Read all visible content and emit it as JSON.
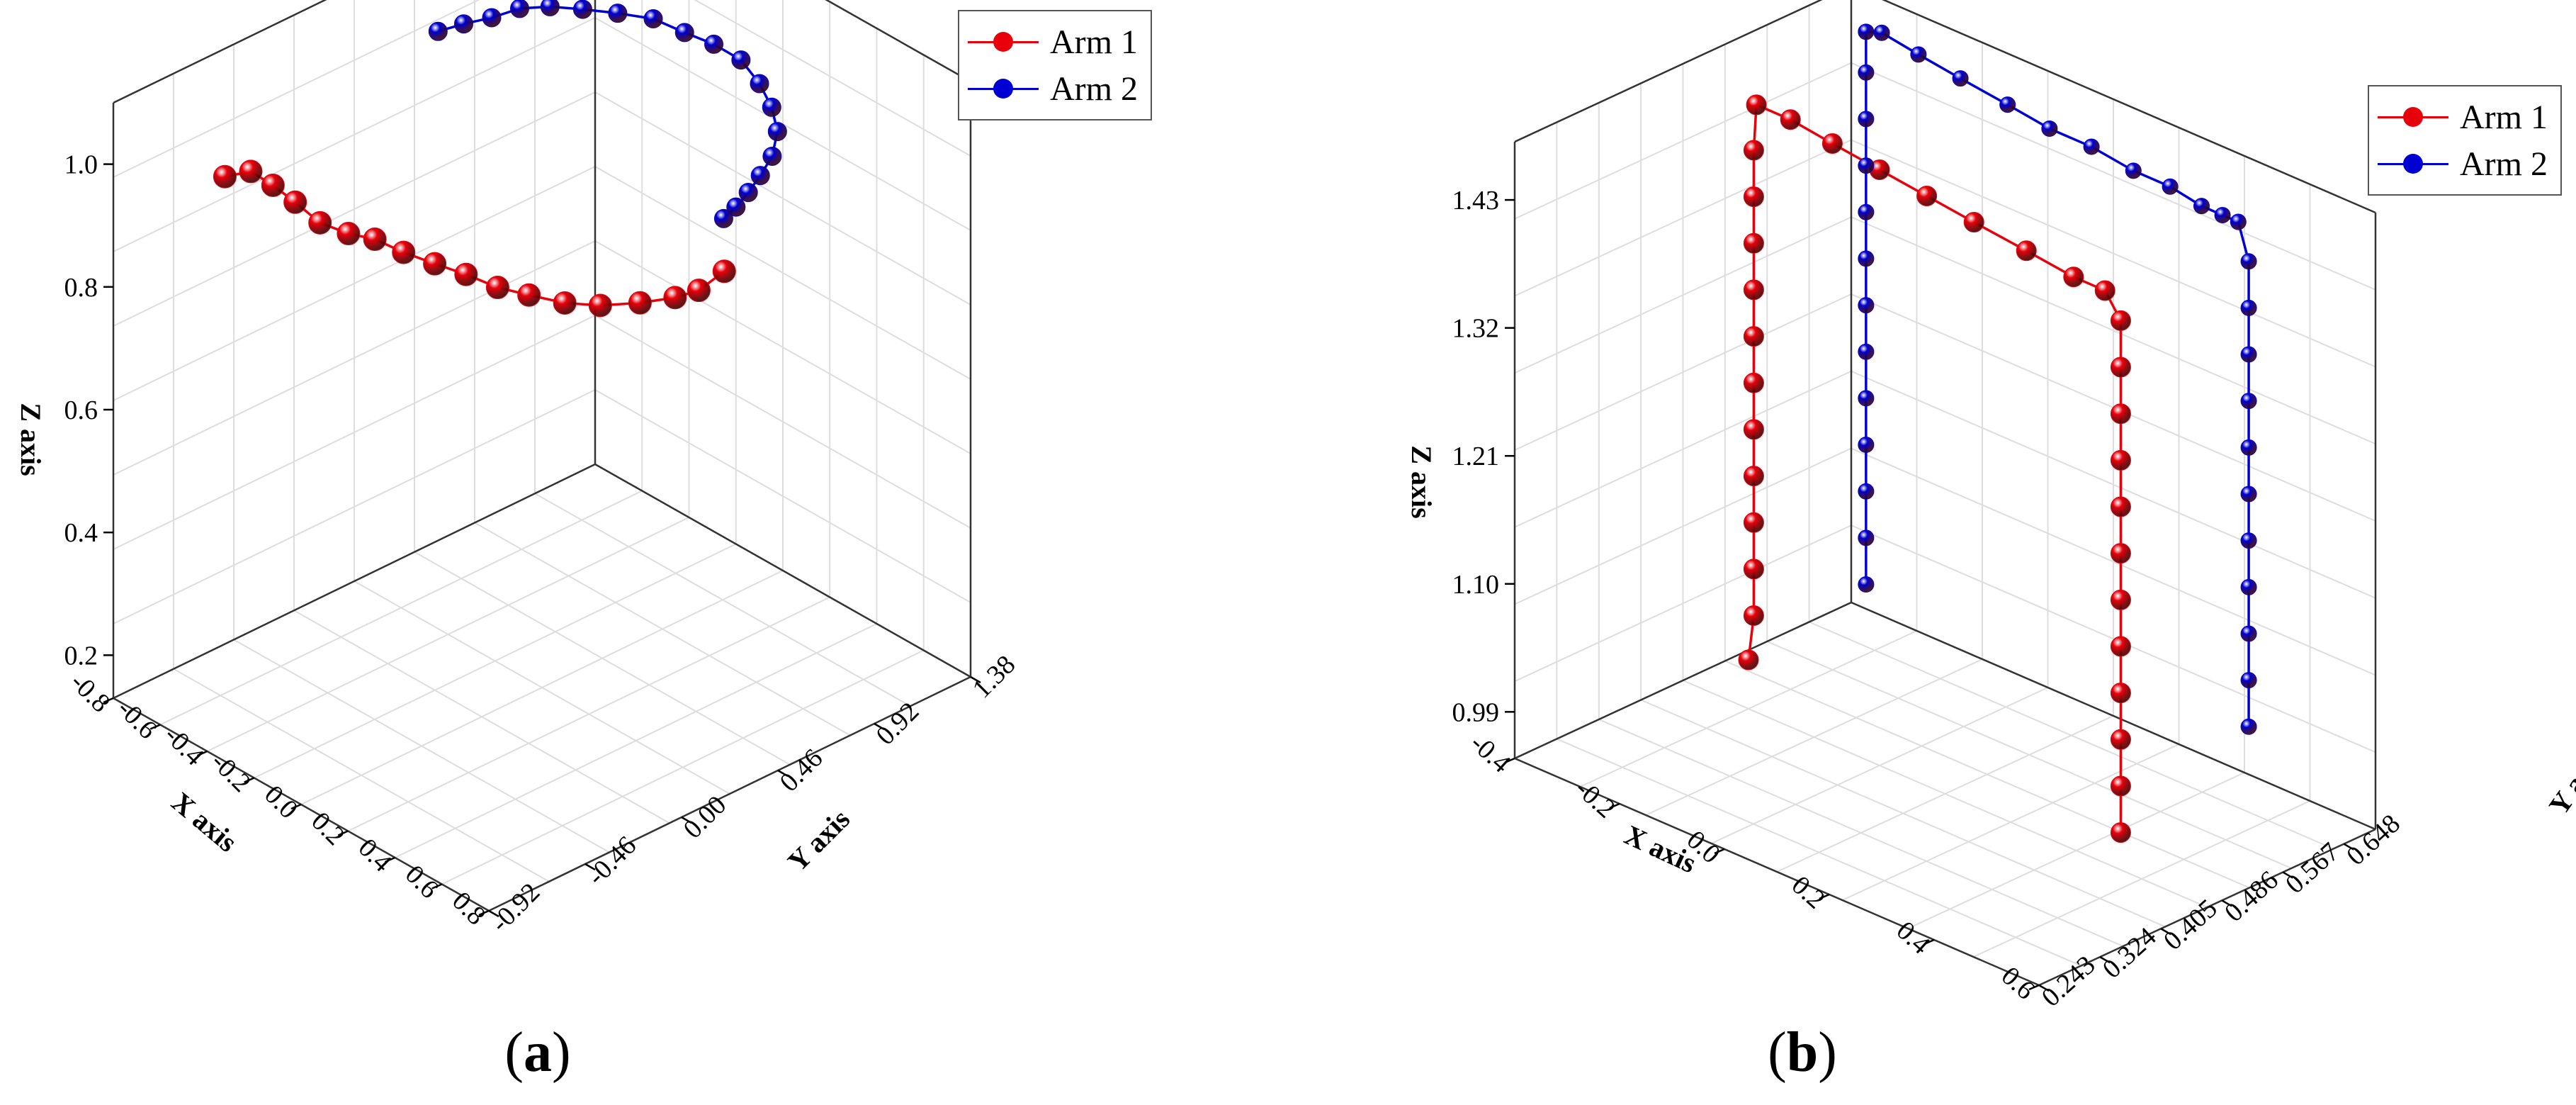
{
  "captions": {
    "a": "a",
    "b": "b"
  },
  "colors": {
    "arm1": "#e8000b",
    "arm2": "#0000d2",
    "grid": "#dddddd",
    "axis": "#333333"
  },
  "chart_data": [
    {
      "type": "scatter",
      "subtype": "3d-line-markers",
      "title": "",
      "xlabel": "X axis",
      "ylabel": "Y axis",
      "zlabel": "Z axis",
      "xlim": [
        -0.8,
        0.8
      ],
      "ylim": [
        -0.92,
        1.38
      ],
      "zlim": [
        0.13,
        1.1
      ],
      "x_ticks": [
        "-0.8",
        "-0.6",
        "-0.4",
        "-0.2",
        "0.0",
        "0.2",
        "0.4",
        "0.6",
        "0.8"
      ],
      "y_ticks": [
        "-0.92",
        "-0.46",
        "0.00",
        "0.46",
        "0.92",
        "1.38"
      ],
      "z_ticks": [
        "0.2",
        "0.4",
        "0.6",
        "0.8",
        "1.0"
      ],
      "grid": true,
      "legend": "top-right",
      "series": [
        {
          "name": "Arm 1",
          "color": "#e8000b",
          "points": [
            [
              -0.53,
              -0.69,
              1.0
            ],
            [
              -0.5,
              -0.6,
              1.0
            ],
            [
              -0.45,
              -0.55,
              0.98
            ],
            [
              -0.4,
              -0.5,
              0.955
            ],
            [
              -0.33,
              -0.46,
              0.93
            ],
            [
              -0.28,
              -0.38,
              0.91
            ],
            [
              -0.23,
              -0.31,
              0.9
            ],
            [
              -0.17,
              -0.24,
              0.88
            ],
            [
              -0.1,
              -0.17,
              0.865
            ],
            [
              -0.02,
              -0.11,
              0.855
            ],
            [
              0.07,
              -0.06,
              0.845
            ],
            [
              0.15,
              -0.0,
              0.84
            ],
            [
              0.24,
              0.07,
              0.835
            ],
            [
              0.32,
              0.15,
              0.835
            ],
            [
              0.4,
              0.25,
              0.84
            ],
            [
              0.46,
              0.35,
              0.845
            ],
            [
              0.49,
              0.43,
              0.85
            ],
            [
              0.5,
              0.54,
              0.865
            ]
          ]
        },
        {
          "name": "Arm 2",
          "color": "#0000d2",
          "points": [
            [
              -0.55,
              0.35,
              1.06
            ],
            [
              -0.53,
              0.45,
              1.06
            ],
            [
              -0.5,
              0.55,
              1.06
            ],
            [
              -0.47,
              0.65,
              1.065
            ],
            [
              -0.43,
              0.75,
              1.06
            ],
            [
              -0.38,
              0.85,
              1.05
            ],
            [
              -0.32,
              0.95,
              1.04
            ],
            [
              -0.24,
              1.03,
              1.035
            ],
            [
              -0.16,
              1.09,
              1.02
            ],
            [
              -0.08,
              1.14,
              1.01
            ],
            [
              0.0,
              1.18,
              0.995
            ],
            [
              0.07,
              1.19,
              0.97
            ],
            [
              0.14,
              1.17,
              0.95
            ],
            [
              0.2,
              1.13,
              0.93
            ],
            [
              0.24,
              1.06,
              0.91
            ],
            [
              0.27,
              0.97,
              0.9
            ],
            [
              0.29,
              0.89,
              0.89
            ],
            [
              0.3,
              0.82,
              0.88
            ],
            [
              0.31,
              0.75,
              0.875
            ]
          ]
        }
      ]
    },
    {
      "type": "scatter",
      "subtype": "3d-line-markers",
      "title": "",
      "xlabel": "X axis",
      "ylabel": "Y axis",
      "zlabel": "Z axis",
      "xlim": [
        -0.4,
        0.6
      ],
      "ylim": [
        0.243,
        0.69
      ],
      "zlim": [
        0.95,
        1.48
      ],
      "x_ticks": [
        "-0.4",
        "-0.2",
        "0.0",
        "0.2",
        "0.4",
        "0.6"
      ],
      "y_ticks": [
        "0.243",
        "0.324",
        "0.405",
        "0.486",
        "0.567",
        "0.648"
      ],
      "z_ticks": [
        "0.99",
        "1.10",
        "1.21",
        "1.32",
        "1.43"
      ],
      "grid": true,
      "legend": "top-right",
      "series": [
        {
          "name": "Arm 1",
          "color": "#e8000b",
          "points": [
            [
              -0.28,
              0.47,
              0.99
            ],
            [
              -0.27,
              0.47,
              1.03
            ],
            [
              -0.27,
              0.47,
              1.07
            ],
            [
              -0.27,
              0.47,
              1.11
            ],
            [
              -0.27,
              0.47,
              1.15
            ],
            [
              -0.27,
              0.47,
              1.19
            ],
            [
              -0.27,
              0.47,
              1.23
            ],
            [
              -0.27,
              0.47,
              1.27
            ],
            [
              -0.27,
              0.47,
              1.31
            ],
            [
              -0.27,
              0.47,
              1.35
            ],
            [
              -0.27,
              0.47,
              1.39
            ],
            [
              -0.27,
              0.47,
              1.43
            ],
            [
              -0.265,
              0.47,
              1.47
            ],
            [
              -0.2,
              0.47,
              1.47
            ],
            [
              -0.12,
              0.47,
              1.465
            ],
            [
              -0.03,
              0.47,
              1.46
            ],
            [
              0.06,
              0.47,
              1.455
            ],
            [
              0.15,
              0.47,
              1.45
            ],
            [
              0.25,
              0.47,
              1.445
            ],
            [
              0.34,
              0.47,
              1.44
            ],
            [
              0.4,
              0.47,
              1.44
            ],
            [
              0.43,
              0.47,
              1.42
            ],
            [
              0.43,
              0.47,
              1.38
            ],
            [
              0.43,
              0.47,
              1.34
            ],
            [
              0.43,
              0.47,
              1.3
            ],
            [
              0.43,
              0.47,
              1.26
            ],
            [
              0.43,
              0.47,
              1.22
            ],
            [
              0.43,
              0.47,
              1.18
            ],
            [
              0.43,
              0.47,
              1.14
            ],
            [
              0.43,
              0.47,
              1.1
            ],
            [
              0.43,
              0.47,
              1.06
            ],
            [
              0.43,
              0.47,
              1.02
            ],
            [
              0.43,
              0.47,
              0.98
            ]
          ]
        },
        {
          "name": "Arm 2",
          "color": "#0000d2",
          "points": [
            [
              -0.3,
              0.64,
              1.0
            ],
            [
              -0.3,
              0.64,
              1.04
            ],
            [
              -0.3,
              0.64,
              1.08
            ],
            [
              -0.3,
              0.64,
              1.12
            ],
            [
              -0.3,
              0.64,
              1.16
            ],
            [
              -0.3,
              0.64,
              1.2
            ],
            [
              -0.3,
              0.64,
              1.24
            ],
            [
              -0.3,
              0.64,
              1.28
            ],
            [
              -0.3,
              0.64,
              1.32
            ],
            [
              -0.3,
              0.64,
              1.36
            ],
            [
              -0.3,
              0.64,
              1.4
            ],
            [
              -0.3,
              0.64,
              1.44
            ],
            [
              -0.3,
              0.64,
              1.475
            ],
            [
              -0.27,
              0.64,
              1.48
            ],
            [
              -0.2,
              0.64,
              1.475
            ],
            [
              -0.12,
              0.64,
              1.47
            ],
            [
              -0.03,
              0.64,
              1.465
            ],
            [
              0.05,
              0.64,
              1.46
            ],
            [
              0.13,
              0.64,
              1.46
            ],
            [
              0.21,
              0.64,
              1.455
            ],
            [
              0.28,
              0.64,
              1.455
            ],
            [
              0.34,
              0.64,
              1.45
            ],
            [
              0.38,
              0.64,
              1.45
            ],
            [
              0.41,
              0.64,
              1.45
            ],
            [
              0.43,
              0.64,
              1.42
            ],
            [
              0.43,
              0.64,
              1.38
            ],
            [
              0.43,
              0.64,
              1.34
            ],
            [
              0.43,
              0.64,
              1.3
            ],
            [
              0.43,
              0.64,
              1.26
            ],
            [
              0.43,
              0.64,
              1.22
            ],
            [
              0.43,
              0.64,
              1.18
            ],
            [
              0.43,
              0.64,
              1.14
            ],
            [
              0.43,
              0.64,
              1.1
            ],
            [
              0.43,
              0.64,
              1.06
            ],
            [
              0.43,
              0.64,
              1.02
            ]
          ]
        }
      ]
    }
  ]
}
